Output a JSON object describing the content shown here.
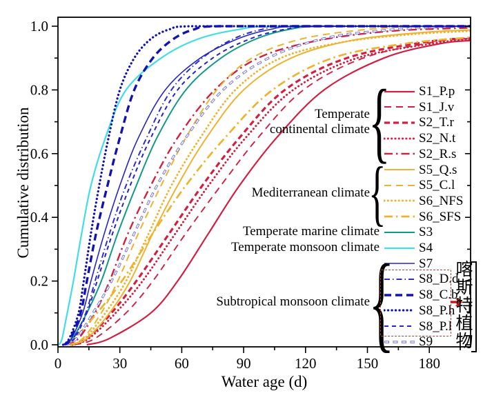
{
  "figure": {
    "background": "#ffffff"
  },
  "axes": {
    "x": {
      "label": "Water age (d)",
      "min": 0,
      "max": 200,
      "major_ticks": [
        0,
        30,
        60,
        90,
        120,
        150,
        180
      ],
      "minor_ticks": [
        15,
        45,
        75,
        105,
        135,
        165,
        195
      ]
    },
    "y": {
      "label": "Cumulative distribution",
      "min": 0.0,
      "max": 1.05,
      "major_ticks": [
        "0.0",
        "0.2",
        "0.4",
        "0.6",
        "0.8",
        "1.0"
      ],
      "minor_ticks": [
        0.1,
        0.3,
        0.5,
        0.7,
        0.9
      ]
    },
    "grid": false
  },
  "colors": {
    "crimson": "#d11f3f",
    "gold": "#eeb22f",
    "teal": "#119988",
    "cyan": "#3fdde8",
    "blue": "#2323c8",
    "blue_dark": "#1212b0",
    "blue_mid": "#2c2cd0",
    "blue_light": "#7474d8",
    "axis": "#000000",
    "annotation_red": "#c0392b",
    "arrow_red": "#cc1111"
  },
  "chart_data": {
    "type": "line",
    "title": "",
    "xlabel": "Water age (d)",
    "ylabel": "Cumulative distribution",
    "xlim": [
      0,
      200
    ],
    "ylim": [
      0,
      1.05
    ],
    "legend_position": "right-center",
    "series": [
      {
        "name": "S1_P.p",
        "group": "Temperate continental climate",
        "color": "#d11f3f",
        "style": {
          "pattern": "solid",
          "width": 2.2,
          "dashArray": null
        },
        "points": [
          [
            14,
            0
          ],
          [
            25,
            0.02
          ],
          [
            45,
            0.1
          ],
          [
            58,
            0.2
          ],
          [
            73,
            0.35
          ],
          [
            88,
            0.5
          ],
          [
            106,
            0.65
          ],
          [
            129,
            0.8
          ],
          [
            158,
            0.9
          ],
          [
            185,
            0.945
          ],
          [
            200,
            0.955
          ]
        ]
      },
      {
        "name": "S1_J.v",
        "group": "Temperate continental climate",
        "color": "#d11f3f",
        "style": {
          "pattern": "dashed",
          "width": 1.9,
          "dashArray": "10 7"
        },
        "points": [
          [
            8,
            0
          ],
          [
            18,
            0.02
          ],
          [
            33,
            0.1
          ],
          [
            46,
            0.2
          ],
          [
            62,
            0.35
          ],
          [
            79,
            0.5
          ],
          [
            97,
            0.65
          ],
          [
            119,
            0.8
          ],
          [
            148,
            0.9
          ],
          [
            182,
            0.95
          ],
          [
            200,
            0.962
          ]
        ]
      },
      {
        "name": "S2_T.r",
        "group": "Temperate continental climate",
        "color": "#d11f3f",
        "style": {
          "pattern": "bold-dashed",
          "width": 3.2,
          "dashArray": "8 5"
        },
        "points": [
          [
            6,
            0
          ],
          [
            14,
            0.02
          ],
          [
            26,
            0.1
          ],
          [
            38,
            0.2
          ],
          [
            54,
            0.35
          ],
          [
            70,
            0.5
          ],
          [
            88,
            0.65
          ],
          [
            110,
            0.8
          ],
          [
            140,
            0.9
          ],
          [
            178,
            0.95
          ],
          [
            200,
            0.963
          ]
        ]
      },
      {
        "name": "S2_N.t",
        "group": "Temperate continental climate",
        "color": "#d11f3f",
        "style": {
          "pattern": "dotted",
          "width": 3.0,
          "dashArray": "0.1 5.2",
          "cap": "round"
        },
        "points": [
          [
            7,
            0
          ],
          [
            15,
            0.02
          ],
          [
            28,
            0.1
          ],
          [
            41,
            0.2
          ],
          [
            57,
            0.35
          ],
          [
            73,
            0.5
          ],
          [
            91,
            0.65
          ],
          [
            114,
            0.8
          ],
          [
            145,
            0.9
          ],
          [
            184,
            0.948
          ],
          [
            200,
            0.958
          ]
        ]
      },
      {
        "name": "S2_R.s",
        "group": "Temperate continental climate",
        "color": "#d11f3f",
        "style": {
          "pattern": "dash-dot",
          "width": 2.4,
          "dashArray": "12 5 2.5 5"
        },
        "points": [
          [
            4,
            0
          ],
          [
            10,
            0.02
          ],
          [
            18,
            0.1
          ],
          [
            25,
            0.2
          ],
          [
            34,
            0.35
          ],
          [
            45,
            0.5
          ],
          [
            58,
            0.65
          ],
          [
            76,
            0.8
          ],
          [
            97,
            0.9
          ],
          [
            126,
            0.955
          ],
          [
            162,
            0.985
          ],
          [
            200,
            0.995
          ]
        ]
      },
      {
        "name": "S5_Q.s",
        "group": "Mediterranean climate",
        "color": "#eeb22f",
        "style": {
          "pattern": "solid",
          "width": 2.0,
          "dashArray": null
        },
        "points": [
          [
            6,
            0
          ],
          [
            14,
            0.02
          ],
          [
            25,
            0.1
          ],
          [
            35,
            0.2
          ],
          [
            46,
            0.35
          ],
          [
            58,
            0.5
          ],
          [
            72,
            0.65
          ],
          [
            90,
            0.8
          ],
          [
            113,
            0.9
          ],
          [
            142,
            0.955
          ],
          [
            176,
            0.98
          ],
          [
            200,
            0.988
          ]
        ]
      },
      {
        "name": "S5_C.l",
        "group": "Mediterranean climate",
        "color": "#eeb22f",
        "style": {
          "pattern": "dashed",
          "width": 2.0,
          "dashArray": "10 7"
        },
        "points": [
          [
            5,
            0
          ],
          [
            12,
            0.02
          ],
          [
            21,
            0.1
          ],
          [
            29,
            0.2
          ],
          [
            39,
            0.35
          ],
          [
            50,
            0.5
          ],
          [
            62,
            0.65
          ],
          [
            77,
            0.8
          ],
          [
            94,
            0.9
          ],
          [
            118,
            0.96
          ],
          [
            150,
            0.99
          ],
          [
            178,
            1.0
          ],
          [
            200,
            1.0
          ]
        ]
      },
      {
        "name": "S6_NFS",
        "group": "Mediterranean climate",
        "color": "#eeb22f",
        "style": {
          "pattern": "dotted",
          "width": 3.0,
          "dashArray": "0.1 5.2",
          "cap": "round"
        },
        "points": [
          [
            6,
            0
          ],
          [
            13,
            0.02
          ],
          [
            23,
            0.1
          ],
          [
            33,
            0.2
          ],
          [
            44,
            0.35
          ],
          [
            55,
            0.5
          ],
          [
            69,
            0.65
          ],
          [
            86,
            0.8
          ],
          [
            108,
            0.9
          ],
          [
            138,
            0.95
          ],
          [
            172,
            0.975
          ],
          [
            200,
            0.985
          ]
        ]
      },
      {
        "name": "S6_SFS",
        "group": "Mediterranean climate",
        "color": "#eeb22f",
        "style": {
          "pattern": "dash-dot",
          "width": 2.7,
          "dashArray": "12 5 2.5 5"
        },
        "points": [
          [
            3,
            0
          ],
          [
            8,
            0.02
          ],
          [
            19,
            0.1
          ],
          [
            31,
            0.2
          ],
          [
            46,
            0.35
          ],
          [
            62,
            0.5
          ],
          [
            81,
            0.65
          ],
          [
            104,
            0.8
          ],
          [
            133,
            0.9
          ],
          [
            168,
            0.945
          ],
          [
            200,
            0.965
          ]
        ]
      },
      {
        "name": "S3",
        "group": "Temperate marine climate",
        "color": "#119988",
        "style": {
          "pattern": "solid",
          "width": 2.0,
          "dashArray": null
        },
        "points": [
          [
            3,
            0
          ],
          [
            7,
            0.02
          ],
          [
            14,
            0.1
          ],
          [
            21,
            0.2
          ],
          [
            29,
            0.35
          ],
          [
            38,
            0.5
          ],
          [
            48,
            0.65
          ],
          [
            62,
            0.8
          ],
          [
            79,
            0.9
          ],
          [
            96,
            0.96
          ],
          [
            112,
            0.99
          ],
          [
            130,
            1.0
          ],
          [
            200,
            1.0
          ]
        ]
      },
      {
        "name": "S4",
        "group": "Temperate monsoon climate",
        "color": "#3fdde8",
        "style": {
          "pattern": "solid",
          "width": 2.2,
          "dashArray": null
        },
        "points": [
          [
            0.5,
            0
          ],
          [
            2,
            0.02
          ],
          [
            4.5,
            0.1
          ],
          [
            7.5,
            0.2
          ],
          [
            11.5,
            0.35
          ],
          [
            16,
            0.5
          ],
          [
            23,
            0.65
          ],
          [
            33,
            0.8
          ],
          [
            50,
            0.9
          ],
          [
            68,
            0.96
          ],
          [
            88,
            0.99
          ],
          [
            108,
            1.0
          ],
          [
            200,
            1.0
          ]
        ]
      },
      {
        "name": "S9",
        "group": "Subtropical monsoon climate",
        "color": "#7474d8",
        "style": {
          "pattern": "hollow-dashed",
          "width": 3.4,
          "dashArray": "7 5.5",
          "hollow": true
        },
        "points": [
          [
            4,
            0
          ],
          [
            9,
            0.02
          ],
          [
            17,
            0.1
          ],
          [
            26,
            0.2
          ],
          [
            37,
            0.35
          ],
          [
            48,
            0.5
          ],
          [
            62,
            0.65
          ],
          [
            80,
            0.8
          ],
          [
            102,
            0.9
          ],
          [
            128,
            0.96
          ],
          [
            155,
            0.985
          ],
          [
            185,
            0.998
          ],
          [
            200,
            1.0
          ]
        ]
      },
      {
        "name": "S8_P.l",
        "group": "Subtropical monsoon climate",
        "color": "#2323c8",
        "style": {
          "pattern": "dashed",
          "width": 2.0,
          "dashArray": "6 5"
        },
        "points": [
          [
            3.5,
            0
          ],
          [
            8,
            0.02
          ],
          [
            14,
            0.1
          ],
          [
            19,
            0.2
          ],
          [
            26.5,
            0.35
          ],
          [
            35,
            0.5
          ],
          [
            45,
            0.65
          ],
          [
            58,
            0.8
          ],
          [
            75,
            0.9
          ],
          [
            93,
            0.96
          ],
          [
            110,
            0.99
          ],
          [
            128,
            1.0
          ],
          [
            200,
            1.0
          ]
        ]
      },
      {
        "name": "S8_D.d",
        "group": "Subtropical monsoon climate",
        "color": "#2c2cd0",
        "style": {
          "pattern": "dash-dot",
          "width": 2.0,
          "dashArray": "8 4 1.5 4"
        },
        "points": [
          [
            3.5,
            0
          ],
          [
            7.5,
            0.02
          ],
          [
            13.5,
            0.1
          ],
          [
            18,
            0.2
          ],
          [
            25,
            0.35
          ],
          [
            33,
            0.5
          ],
          [
            43,
            0.65
          ],
          [
            55,
            0.8
          ],
          [
            70,
            0.9
          ],
          [
            85,
            0.96
          ],
          [
            99,
            0.99
          ],
          [
            114,
            1.0
          ],
          [
            200,
            1.0
          ]
        ]
      },
      {
        "name": "S7",
        "group": "Subtropical monsoon climate",
        "color": "#2323c8",
        "style": {
          "pattern": "solid",
          "width": 1.6,
          "dashArray": null
        },
        "points": [
          [
            3,
            0
          ],
          [
            6.5,
            0.02
          ],
          [
            12,
            0.1
          ],
          [
            16,
            0.2
          ],
          [
            22.5,
            0.35
          ],
          [
            30,
            0.5
          ],
          [
            39,
            0.65
          ],
          [
            52,
            0.8
          ],
          [
            69,
            0.9
          ],
          [
            87,
            0.96
          ],
          [
            103,
            0.99
          ],
          [
            120,
            1.0
          ],
          [
            200,
            1.0
          ]
        ]
      },
      {
        "name": "S8_C.b",
        "group": "Subtropical monsoon climate",
        "color": "#1212b0",
        "style": {
          "pattern": "bold-dashed",
          "width": 3.4,
          "dashArray": "10 6"
        },
        "points": [
          [
            3,
            0
          ],
          [
            6,
            0.02
          ],
          [
            11,
            0.1
          ],
          [
            14,
            0.2
          ],
          [
            18.5,
            0.35
          ],
          [
            24,
            0.5
          ],
          [
            30,
            0.65
          ],
          [
            37,
            0.8
          ],
          [
            46,
            0.9
          ],
          [
            56,
            0.96
          ],
          [
            66,
            0.99
          ],
          [
            78,
            1.0
          ],
          [
            200,
            1.0
          ]
        ]
      },
      {
        "name": "S8_P.h",
        "group": "Subtropical monsoon climate",
        "color": "#1212b0",
        "style": {
          "pattern": "dotted",
          "width": 3.3,
          "dashArray": "0.1 5.4",
          "cap": "round"
        },
        "points": [
          [
            2.5,
            0
          ],
          [
            5.5,
            0.02
          ],
          [
            10,
            0.1
          ],
          [
            12.5,
            0.2
          ],
          [
            16,
            0.35
          ],
          [
            20,
            0.5
          ],
          [
            24.5,
            0.65
          ],
          [
            30,
            0.8
          ],
          [
            37,
            0.9
          ],
          [
            45,
            0.96
          ],
          [
            54,
            0.99
          ],
          [
            65,
            1.0
          ],
          [
            200,
            1.0
          ]
        ]
      }
    ]
  },
  "legend": {
    "groups": [
      {
        "label_lines": [
          "Temperate",
          "continental climate"
        ],
        "brace": true,
        "items": [
          "S1_P.p",
          "S1_J.v",
          "S2_T.r",
          "S2_N.t",
          "S2_R.s"
        ]
      },
      {
        "label_lines": [
          "Mediterranean climate"
        ],
        "brace": true,
        "items": [
          "S5_Q.s",
          "S5_C.l",
          "S6_NFS",
          "S6_SFS"
        ]
      },
      {
        "label_lines": [
          "Temperate marine climate"
        ],
        "brace": false,
        "items": [
          "S3"
        ]
      },
      {
        "label_lines": [
          "Temperate monsoon climate"
        ],
        "brace": false,
        "items": [
          "S4"
        ]
      },
      {
        "label_lines": [
          "Subtropical monsoon climate"
        ],
        "brace": true,
        "items": [
          "S7",
          "S8_D.d",
          "S8_C.b",
          "S8_P.h",
          "S8_P.l",
          "S9"
        ]
      }
    ]
  },
  "annotation": {
    "boxed_items": [
      "S8_D.d",
      "S8_C.b",
      "S8_P.h",
      "S8_P.l"
    ],
    "arrow": "➔",
    "text": "喀斯特植物"
  }
}
